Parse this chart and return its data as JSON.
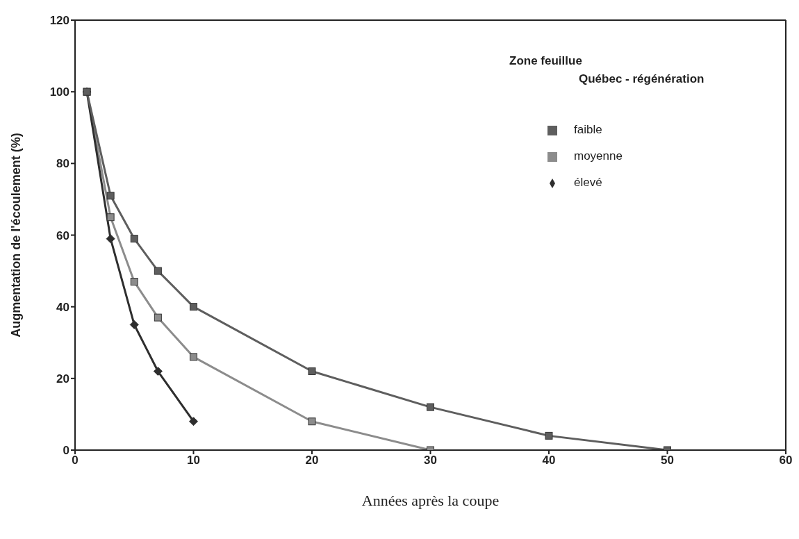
{
  "chart_data": {
    "type": "line",
    "xlabel": "Années après la coupe",
    "ylabel": "Augmentation de l'écoulement (%)",
    "legend_title": "Zone feuillue",
    "annotations": [
      "Québec - régénération"
    ],
    "xlim": [
      0,
      60
    ],
    "xticks": [
      0,
      10,
      20,
      30,
      40,
      50,
      60
    ],
    "ylim": [
      0,
      120
    ],
    "yticks": [
      0,
      20,
      40,
      60,
      80,
      100,
      120
    ],
    "grid": false,
    "legend": "top right",
    "line_style": "solid",
    "series": [
      {
        "name": "moyenne",
        "color": "#8c8c8c",
        "marker": "square",
        "x": [
          1,
          3,
          5,
          7,
          10,
          20,
          30
        ],
        "values": [
          100,
          65,
          47,
          37,
          26,
          8,
          0
        ]
      },
      {
        "name": "élevé",
        "color": "#2e2e2e",
        "marker": "diamond",
        "x": [
          1,
          3,
          5,
          7,
          10
        ],
        "values": [
          100,
          59,
          35,
          22,
          8
        ]
      },
      {
        "name": "faible",
        "color": "#5e5e5e",
        "marker": "square",
        "x": [
          1,
          3,
          5,
          7,
          10,
          20,
          30,
          40,
          50
        ],
        "values": [
          100,
          71,
          59,
          50,
          40,
          22,
          12,
          4,
          0
        ]
      }
    ]
  }
}
